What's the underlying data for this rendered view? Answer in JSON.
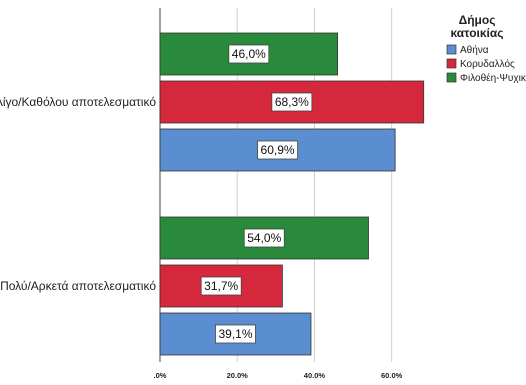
{
  "chart_data": {
    "type": "bar",
    "orientation": "horizontal",
    "categories": [
      "Λίγο/Καθόλου αποτελεσματικό",
      "Πολύ/Αρκετά αποτελεσματικό"
    ],
    "series": [
      {
        "name": "Αθήνα",
        "color": "#5b8ed0",
        "values": [
          60.9,
          39.1
        ],
        "labels": [
          "60,9%",
          "39,1%"
        ]
      },
      {
        "name": "Κορυδαλλός",
        "color": "#d5283c",
        "values": [
          68.3,
          31.7
        ],
        "labels": [
          "68,3%",
          "31,7%"
        ]
      },
      {
        "name": "Φιλοθέη-Ψυχικό",
        "color": "#2a8a3c",
        "values": [
          46.0,
          54.0
        ],
        "labels": [
          "46,0%",
          "54,0%"
        ]
      }
    ],
    "xlim": [
      0,
      72
    ],
    "xticks": [
      0,
      20,
      40,
      60
    ],
    "xtick_labels": [
      ".0%",
      "20.0%",
      "40.0%",
      "60.0%"
    ],
    "grid": "vertical",
    "legend": {
      "title": "Δήμος κατοικίας",
      "title_lines": [
        "Δήμος",
        "κατοικίας"
      ],
      "placement": "top-right"
    }
  }
}
